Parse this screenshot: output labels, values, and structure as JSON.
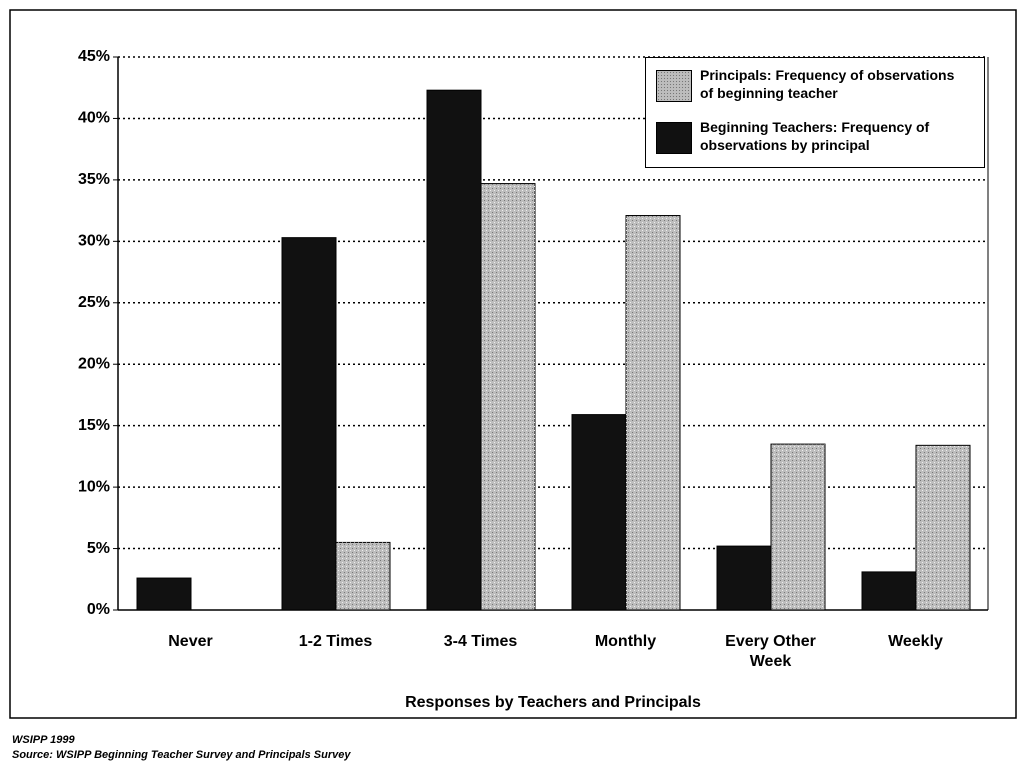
{
  "chart_data": {
    "type": "bar",
    "x_label": "Responses by Teachers and Principals",
    "categories": [
      "Never",
      "1-2 Times",
      "3-4 Times",
      "Monthly",
      "Every Other Week",
      "Weekly"
    ],
    "series": [
      {
        "name": "Beginning Teachers: Frequency of observations by principal",
        "color": "#111111",
        "values": [
          2.6,
          30.3,
          42.3,
          15.9,
          5.2,
          3.1
        ]
      },
      {
        "name": "Principals: Frequency of observations of beginning teacher",
        "color": "#bdbdbd",
        "values": [
          0,
          5.5,
          34.7,
          32.1,
          13.5,
          13.4
        ]
      }
    ],
    "ylim": [
      0,
      45
    ],
    "yticks": [
      {
        "value": 0,
        "label": "0%"
      },
      {
        "value": 5,
        "label": "5%"
      },
      {
        "value": 10,
        "label": "10%"
      },
      {
        "value": 15,
        "label": "15%"
      },
      {
        "value": 20,
        "label": "20%"
      },
      {
        "value": 25,
        "label": "25%"
      },
      {
        "value": 30,
        "label": "30%"
      },
      {
        "value": 35,
        "label": "35%"
      },
      {
        "value": 40,
        "label": "40%"
      },
      {
        "value": 45,
        "label": "45%"
      }
    ],
    "grid": true,
    "legend_position": "upper right",
    "notes": [
      "WSIPP 1999",
      "Source:  WSIPP Beginning Teacher Survey and Principals Survey"
    ]
  }
}
